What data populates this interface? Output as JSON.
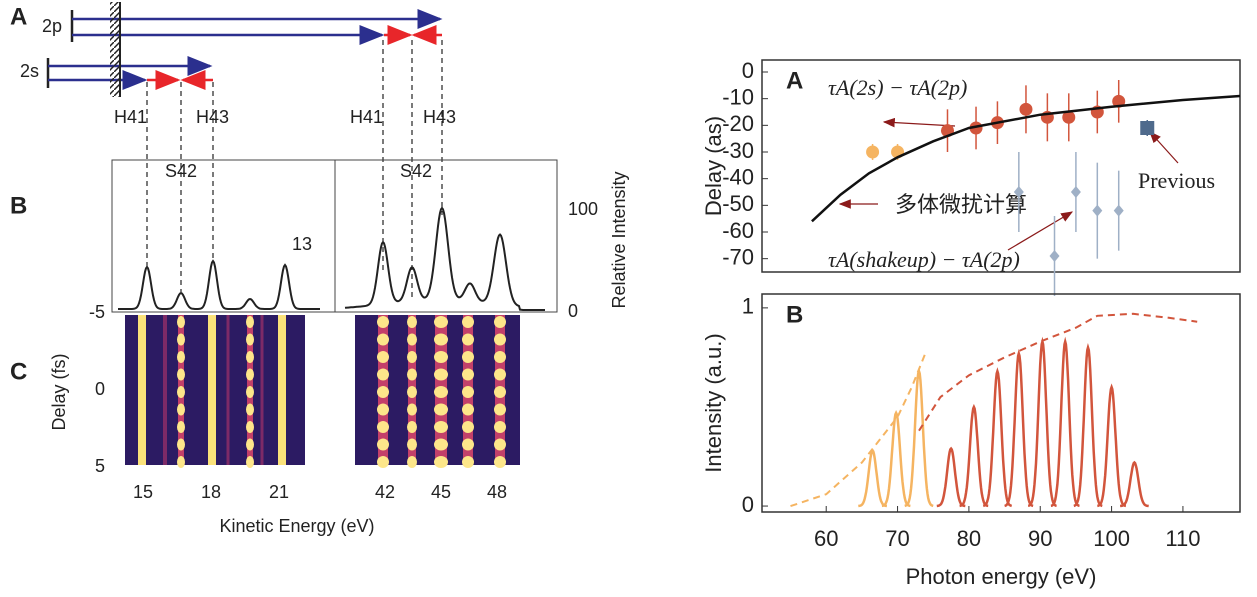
{
  "left_panels": {
    "schematic": {
      "label": "A",
      "level_2p": "2p",
      "level_2s": "2s",
      "h41_left": "H41",
      "h43_left": "H43",
      "s42_left": "S42",
      "h41_right": "H41",
      "h43_right": "H43",
      "s42_right": "S42"
    },
    "spectra": {
      "label": "B",
      "ylabel": "Relative Intensity",
      "tick_top": 100,
      "tick_bottom": 0,
      "scale_factor": 13
    },
    "spectrogram": {
      "label": "C",
      "ylabel": "Delay (fs)",
      "yticks": [
        -5,
        0,
        5
      ],
      "xticks_left": [
        15,
        18,
        21
      ],
      "xticks_right": [
        42,
        45,
        48
      ],
      "xlabel": "Kinetic Energy (eV)"
    }
  },
  "chart_data": [
    {
      "type": "scatter",
      "label": "A",
      "ylabel": "Delay (as)",
      "xlim": [
        51,
        118
      ],
      "ylim": [
        -75,
        4.5
      ],
      "yticks": [
        0,
        -10,
        -20,
        -30,
        -40,
        -50,
        -60,
        -70
      ],
      "annotations": {
        "main": "τA(2s) − τA(2p)",
        "theory": "多体微扰计算",
        "shakeup": "τA(shakeup) − τA(2p)",
        "previous": "Previous"
      },
      "series": [
        {
          "marker": "circle",
          "color": "#f5b461",
          "x": [
            66.5,
            70
          ],
          "values": [
            -30,
            -30
          ],
          "errors": [
            3,
            3
          ]
        },
        {
          "marker": "circle",
          "color": "#d2553c",
          "x": [
            77,
            81,
            84,
            88,
            91,
            94,
            98,
            101
          ],
          "values": [
            -22,
            -21,
            -19,
            -14,
            -17,
            -17,
            -15,
            -11
          ],
          "errors": [
            8,
            8,
            8,
            9,
            9,
            9,
            8,
            8
          ]
        },
        {
          "marker": "diamond",
          "color": "#9fb0c6",
          "x": [
            87,
            92,
            95,
            98,
            101
          ],
          "values": [
            -45,
            -69,
            -45,
            -52,
            -52
          ],
          "errors": [
            15,
            15,
            15,
            18,
            15
          ]
        },
        {
          "marker": "square",
          "color": "#4f6a8c",
          "x": [
            105
          ],
          "values": [
            -21
          ],
          "errors": [
            3
          ]
        },
        {
          "marker": "line",
          "color": "#111111",
          "x": [
            58,
            62,
            66,
            70,
            75,
            80,
            90,
            100,
            110,
            118
          ],
          "values": [
            -56,
            -46,
            -38,
            -32,
            -26,
            -21,
            -16,
            -13,
            -10.5,
            -9
          ]
        }
      ]
    },
    {
      "type": "line",
      "label": "B",
      "xlabel": "Photon energy (eV)",
      "ylabel": "Intensity (a.u.)",
      "xlim": [
        51,
        118
      ],
      "ylim": [
        -0.03,
        1.07
      ],
      "xticks": [
        60,
        70,
        80,
        90,
        100,
        110
      ],
      "yticks": [
        0,
        1
      ],
      "series": [
        {
          "style": "peaks",
          "color": "#f5b461",
          "x": [
            66.5,
            69.8,
            73
          ],
          "values": [
            0.28,
            0.47,
            0.68
          ]
        },
        {
          "style": "peaks",
          "color": "#d2553c",
          "x": [
            77.5,
            80.7,
            84,
            87,
            90.3,
            93.5,
            96.7,
            100,
            103.2
          ],
          "values": [
            0.29,
            0.5,
            0.68,
            0.77,
            0.83,
            0.83,
            0.8,
            0.6,
            0.22
          ]
        },
        {
          "style": "dashed",
          "color": "#f5b461",
          "x": [
            55,
            60,
            65,
            70,
            72,
            74
          ],
          "values": [
            0,
            0.06,
            0.22,
            0.45,
            0.6,
            0.78
          ]
        },
        {
          "style": "dashed",
          "color": "#d2553c",
          "x": [
            73,
            76,
            80,
            85,
            90,
            95,
            98,
            103,
            108,
            112
          ],
          "values": [
            0.38,
            0.55,
            0.66,
            0.75,
            0.83,
            0.9,
            0.96,
            0.97,
            0.95,
            0.93
          ]
        }
      ]
    }
  ]
}
